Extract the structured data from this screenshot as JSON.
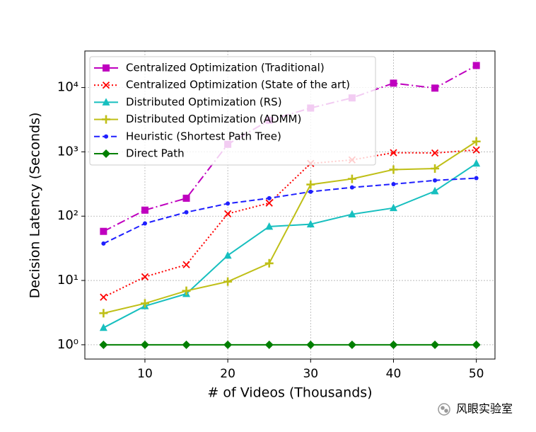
{
  "chart_data": {
    "type": "line",
    "xlabel": "# of Videos (Thousands)",
    "ylabel": "Decision Latency (Seconds)",
    "log_y": true,
    "grid": true,
    "legend": "upper left",
    "x": [
      5,
      10,
      15,
      20,
      25,
      30,
      35,
      40,
      45,
      50
    ],
    "xlim": [
      2.75,
      52.25
    ],
    "xticks": [
      10,
      20,
      30,
      40,
      50
    ],
    "ylim": [
      0.6,
      37000
    ],
    "yticks": [
      {
        "value": 1,
        "label": "10⁰"
      },
      {
        "value": 10,
        "label": "10¹"
      },
      {
        "value": 100,
        "label": "10²"
      },
      {
        "value": 1000,
        "label": "10³"
      },
      {
        "value": 10000,
        "label": "10⁴"
      }
    ],
    "series": [
      {
        "name": "Centralized Optimization (Traditional)",
        "color": "#bf00bf",
        "marker": "square",
        "linestyle": "dashdot",
        "values": [
          58,
          124,
          190,
          1310,
          3100,
          4800,
          6900,
          11700,
          9800,
          22000
        ]
      },
      {
        "name": "Centralized Optimization (State of the art)",
        "color": "#ff0000",
        "marker": "x",
        "linestyle": "dotted",
        "values": [
          5.5,
          11.4,
          17.6,
          109,
          160,
          660,
          750,
          970,
          960,
          1070
        ]
      },
      {
        "name": "Distributed Optimization (RS)",
        "color": "#17bfbf",
        "marker": "triangle",
        "linestyle": "solid",
        "values": [
          1.84,
          4.0,
          6.2,
          24.5,
          69,
          75,
          107,
          134,
          245,
          660
        ]
      },
      {
        "name": "Distributed Optimization (ADMM)",
        "color": "#bfbf17",
        "marker": "plus",
        "linestyle": "solid",
        "values": [
          3.1,
          4.4,
          6.9,
          9.6,
          18.5,
          310,
          380,
          530,
          550,
          1450
        ]
      },
      {
        "name": "Heuristic (Shortest Path Tree)",
        "color": "#1f1fff",
        "marker": "dot",
        "linestyle": "dashed",
        "values": [
          37.5,
          77,
          115,
          157,
          190,
          240,
          280,
          315,
          360,
          390
        ]
      },
      {
        "name": "Direct Path",
        "color": "#007f00",
        "marker": "diamond",
        "linestyle": "solid",
        "values": [
          1,
          1,
          1,
          1,
          1,
          1,
          1,
          1,
          1,
          1
        ]
      }
    ],
    "watermark": "风眼实验室"
  }
}
